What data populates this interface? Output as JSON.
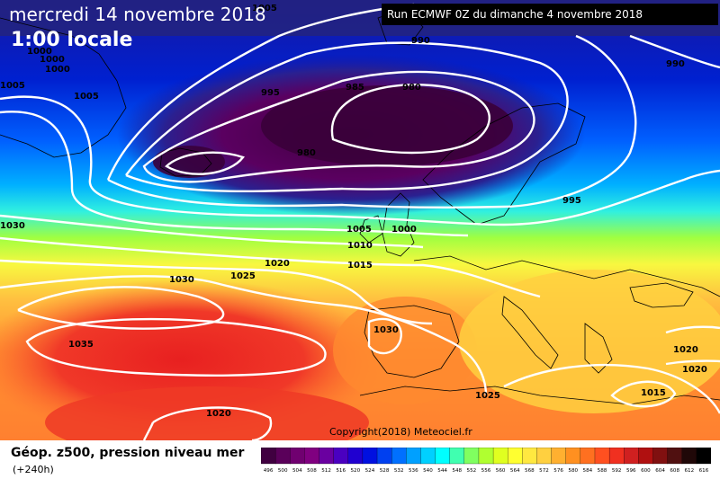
{
  "header": {
    "date": "mercredi 14 novembre 2018",
    "time": "1:00 locale",
    "run": "Run ECMWF 0Z du dimanche 4 novembre 2018"
  },
  "footer": {
    "field": "Géop. z500, pression niveau mer",
    "lead": "(+240h)",
    "copyright": "Copyright(2018) Meteociel.fr"
  },
  "isobars": {
    "l1005a": "1005",
    "l1000a": "1000",
    "l1000b": "1000",
    "l1000c": "1000",
    "l1005b": "1005",
    "l1005c": "1005",
    "l990a": "990",
    "l990b": "990",
    "l995a": "995",
    "l985": "985",
    "l980a": "980",
    "l980b": "980",
    "l995b": "995",
    "l1030a": "1030",
    "l1005d": "1005",
    "l1000d": "1000",
    "l1010": "1010",
    "l1020a": "1020",
    "l1015a": "1015",
    "l1030b": "1030",
    "l1025a": "1025",
    "l1030c": "1030",
    "l1035": "1035",
    "l1025b": "1025",
    "l1020b": "1020",
    "l1020c": "1020",
    "l1020d": "1020",
    "l1015b": "1015"
  },
  "scale": {
    "ticks": [
      "496",
      "500",
      "504",
      "508",
      "512",
      "516",
      "520",
      "524",
      "528",
      "532",
      "536",
      "540",
      "544",
      "548",
      "552",
      "556",
      "560",
      "564",
      "568",
      "572",
      "576",
      "580",
      "584",
      "588",
      "592",
      "596",
      "600",
      "604",
      "608",
      "612",
      "616"
    ],
    "colors": [
      "#400040",
      "#5a005a",
      "#700070",
      "#800080",
      "#6a00a0",
      "#4a00c0",
      "#2000d0",
      "#0010e0",
      "#0040f0",
      "#0070ff",
      "#00a0ff",
      "#00d0ff",
      "#00ffff",
      "#40ffb0",
      "#80ff60",
      "#b0ff30",
      "#e0ff20",
      "#ffff30",
      "#ffe840",
      "#ffd040",
      "#ffb030",
      "#ff9020",
      "#ff7020",
      "#ff5020",
      "#f03020",
      "#d02020",
      "#b01010",
      "#801010",
      "#501010",
      "#200808",
      "#000000"
    ]
  }
}
